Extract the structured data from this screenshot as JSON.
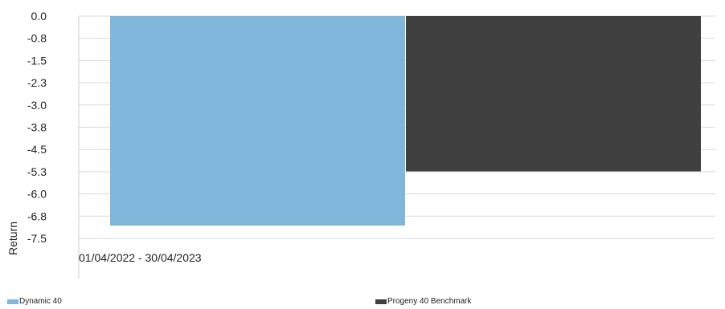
{
  "chart_data": {
    "type": "bar",
    "title": "",
    "xlabel": "",
    "ylabel": "Return",
    "categories": [
      "01/04/2022 - 30/04/2023"
    ],
    "series": [
      {
        "name": "Dynamic 40",
        "values": [
          -7.07
        ],
        "color": "#80b6d9"
      },
      {
        "name": "Progeny 40 Benchmark",
        "values": [
          -5.24
        ],
        "color": "#404040"
      }
    ],
    "yticks": [
      "0.0",
      "-0.8",
      "-1.5",
      "-2.3",
      "-3.0",
      "-3.8",
      "-4.5",
      "-5.3",
      "-6.0",
      "-6.8",
      "-7.5"
    ],
    "ylim": [
      -7.5,
      0.0
    ],
    "grid": true,
    "legend_position": "bottom"
  }
}
